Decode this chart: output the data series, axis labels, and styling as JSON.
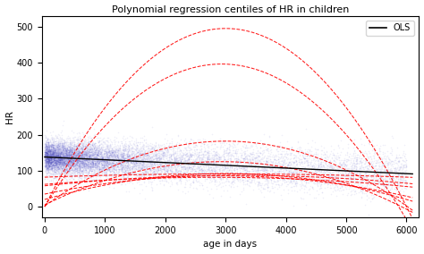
{
  "title": "Polynomial regression centiles of HR in children",
  "xlabel": "age in days",
  "ylabel": "HR",
  "xlim": [
    -50,
    6200
  ],
  "ylim": [
    -30,
    530
  ],
  "scatter_color": "#3333bb",
  "scatter_alpha": 0.08,
  "scatter_size": 1.2,
  "ols_color": "black",
  "ols_label": "OLS",
  "quantile_color": "red",
  "seed": 42,
  "ols_intercept": 138,
  "ols_slope": -0.0077,
  "quantile_curves": [
    [
      -5.5e-05,
      0.33,
      0.0
    ],
    [
      -2e-05,
      0.12,
      2.0
    ],
    [
      -8e-06,
      0.048,
      20.0
    ],
    [
      -2.8e-06,
      0.018,
      58.0
    ],
    [
      -1e-06,
      0.006,
      82.0
    ],
    [
      -2.5e-06,
      0.014,
      62.0
    ],
    [
      -6e-06,
      0.035,
      35.0
    ],
    [
      -1.4e-05,
      0.082,
      5.0
    ],
    [
      -4.6e-05,
      0.27,
      0.0
    ]
  ]
}
